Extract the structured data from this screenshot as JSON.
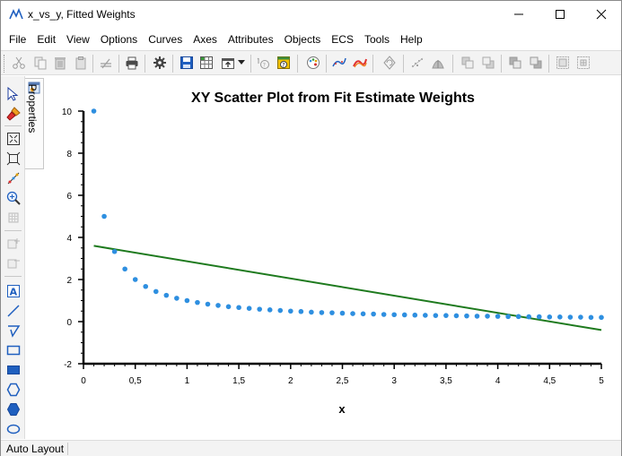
{
  "window": {
    "title": "x_vs_y, Fitted Weights",
    "controls": [
      "minimize",
      "maximize",
      "close"
    ]
  },
  "menubar": {
    "items": [
      "File",
      "Edit",
      "View",
      "Options",
      "Curves",
      "Axes",
      "Attributes",
      "Objects",
      "ECS",
      "Tools",
      "Help"
    ]
  },
  "toolbar": {
    "icons": [
      "cut-icon",
      "copy-icon",
      "delete-icon",
      "paste-icon",
      "format-icon",
      "print-icon",
      "settings-icon",
      "save-icon",
      "data-grid-icon",
      "export-icon",
      "dropdown-icon",
      "number-format-icon",
      "help-icon",
      "palette-icon",
      "curve-fit-icon",
      "curve-fit-highlight-icon",
      "rotate-icon",
      "scatter-icon",
      "gauge-icon",
      "bring-forward-icon",
      "send-backward-icon",
      "bring-to-front-icon",
      "send-to-back-icon",
      "group-icon",
      "ungroup-icon"
    ]
  },
  "lefttools": {
    "icons": [
      "pointer-icon",
      "brush-icon",
      "zoom-fit-icon",
      "zoom-extents-icon",
      "edit-points-icon",
      "zoom-icon",
      "data-table-icon",
      "add-layer-icon",
      "remove-layer-icon",
      "text-icon",
      "line-icon",
      "polyline-icon",
      "rectangle-icon",
      "filled-rectangle-icon",
      "hexagon-icon",
      "filled-hexagon-icon",
      "ellipse-icon"
    ]
  },
  "properties_tab": {
    "label": "Properties"
  },
  "statusbar": {
    "text": "Auto Layout"
  },
  "colors": {
    "points": "#2e8fe0",
    "fit_line": "#1e7a1e",
    "axis": "#000000"
  },
  "chart_data": {
    "type": "scatter",
    "title": "XY Scatter Plot from Fit Estimate Weights",
    "xlabel": "x",
    "ylabel": "",
    "xlim": [
      0,
      5
    ],
    "ylim": [
      -2,
      10
    ],
    "x_ticks": [
      "0",
      "0,5",
      "1",
      "1,5",
      "2",
      "2,5",
      "3",
      "3,5",
      "4",
      "4,5",
      "5"
    ],
    "y_ticks": [
      "-2",
      "0",
      "2",
      "4",
      "6",
      "8",
      "10"
    ],
    "grid": false,
    "series": [
      {
        "marker": "circle",
        "x": [
          0.1,
          0.2,
          0.3,
          0.4,
          0.5,
          0.6,
          0.7,
          0.8,
          0.9,
          1.0,
          1.1,
          1.2,
          1.3,
          1.4,
          1.5,
          1.6,
          1.7,
          1.8,
          1.9,
          2.0,
          2.1,
          2.2,
          2.3,
          2.4,
          2.5,
          2.6,
          2.7,
          2.8,
          2.9,
          3.0,
          3.1,
          3.2,
          3.3,
          3.4,
          3.5,
          3.6,
          3.7,
          3.8,
          3.9,
          4.0,
          4.1,
          4.2,
          4.3,
          4.4,
          4.5,
          4.6,
          4.7,
          4.8,
          4.9,
          5.0
        ],
        "y": [
          10.0,
          5.0,
          3.33,
          2.5,
          2.0,
          1.67,
          1.43,
          1.25,
          1.11,
          1.0,
          0.91,
          0.83,
          0.77,
          0.71,
          0.67,
          0.63,
          0.59,
          0.56,
          0.53,
          0.5,
          0.48,
          0.45,
          0.43,
          0.42,
          0.4,
          0.38,
          0.37,
          0.36,
          0.34,
          0.33,
          0.32,
          0.31,
          0.3,
          0.29,
          0.29,
          0.28,
          0.27,
          0.26,
          0.26,
          0.25,
          0.24,
          0.24,
          0.23,
          0.23,
          0.22,
          0.22,
          0.21,
          0.21,
          0.2,
          0.2
        ]
      },
      {
        "type": "line",
        "x": [
          0.1,
          5.0
        ],
        "y": [
          3.6,
          -0.4
        ]
      }
    ]
  }
}
